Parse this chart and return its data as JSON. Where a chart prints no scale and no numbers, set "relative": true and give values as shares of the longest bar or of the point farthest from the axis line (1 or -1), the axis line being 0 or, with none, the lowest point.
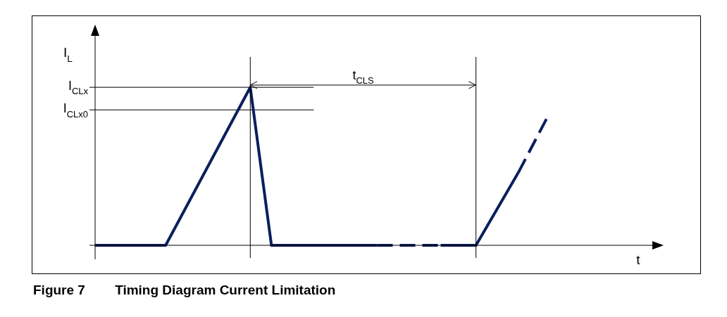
{
  "chart_data": {
    "type": "line",
    "relative": true,
    "title": "Figure 7        Timing Diagram Current Limitation",
    "xlabel": "t",
    "ylabel": "I$_{L}$",
    "tick_labels": false,
    "grid": false,
    "legend": false,
    "marker": "none",
    "categories": [
      null,
      null,
      null,
      null,
      null,
      null,
      null,
      null,
      null,
      null,
      null,
      null,
      null,
      null,
      null,
      null,
      null,
      null,
      null,
      null,
      null,
      null,
      null,
      null,
      null,
      null,
      null,
      null,
      null,
      null,
      null,
      null,
      null,
      null,
      null,
      null,
      null,
      null,
      null,
      null,
      null,
      null,
      null,
      null,
      null,
      null,
      null,
      null,
      null,
      null,
      null,
      null,
      null,
      null,
      null,
      null,
      null,
      null,
      null,
      null,
      null,
      null,
      null,
      null,
      null,
      null,
      null,
      null,
      null,
      null,
      null,
      null,
      null,
      null,
      null,
      null,
      null,
      null,
      null,
      null,
      null
    ],
    "series": [
      {
        "color": "#0b1f5c",
        "line_style": "solid",
        "values": [
          0,
          null,
          null,
          null,
          null,
          null,
          null,
          null,
          null,
          null,
          0,
          null,
          null,
          null,
          null,
          null,
          null,
          null,
          null,
          null,
          null,
          null,
          1,
          null,
          null,
          0,
          null,
          null,
          null,
          null,
          null,
          null,
          null,
          null,
          null,
          null,
          null,
          null,
          null,
          null,
          0,
          null,
          null,
          null,
          null,
          null,
          null,
          null,
          null,
          null,
          null,
          null,
          null,
          null,
          null,
          null,
          null,
          null,
          null,
          null,
          null,
          null,
          null,
          null,
          null,
          null,
          null,
          null,
          null,
          null,
          null,
          null,
          null,
          null,
          null,
          null,
          null,
          null,
          null,
          null,
          null
        ]
      },
      {
        "color": "#0b1f5c",
        "line_style": "dashed",
        "values": [
          null,
          null,
          null,
          null,
          null,
          null,
          null,
          null,
          null,
          null,
          null,
          null,
          null,
          null,
          null,
          null,
          null,
          null,
          null,
          null,
          null,
          null,
          null,
          null,
          null,
          null,
          null,
          null,
          null,
          null,
          null,
          null,
          null,
          null,
          null,
          null,
          null,
          null,
          null,
          null,
          0,
          null,
          null,
          null,
          null,
          null,
          null,
          null,
          null,
          0,
          null,
          null,
          null,
          null,
          null,
          null,
          null,
          null,
          null,
          null,
          null,
          null,
          null,
          null,
          null,
          null,
          null,
          null,
          null,
          null,
          null,
          null,
          null,
          null,
          null,
          null,
          null,
          null,
          null,
          null,
          null
        ]
      },
      {
        "color": "#0b1f5c",
        "line_style": "solid",
        "values": [
          null,
          null,
          null,
          null,
          null,
          null,
          null,
          null,
          null,
          null,
          null,
          null,
          null,
          null,
          null,
          null,
          null,
          null,
          null,
          null,
          null,
          null,
          null,
          null,
          null,
          null,
          null,
          null,
          null,
          null,
          null,
          null,
          null,
          null,
          null,
          null,
          null,
          null,
          null,
          null,
          null,
          null,
          null,
          null,
          null,
          null,
          null,
          null,
          null,
          0,
          null,
          null,
          null,
          null,
          0,
          null,
          null,
          null,
          null,
          null,
          0.46,
          null,
          null,
          null,
          null,
          null,
          null,
          null,
          null,
          null,
          null,
          null,
          null,
          null,
          null,
          null,
          null,
          null,
          null,
          null,
          null
        ]
      },
      {
        "color": "#0b1f5c",
        "line_style": "dashed",
        "values": [
          null,
          null,
          null,
          null,
          null,
          null,
          null,
          null,
          null,
          null,
          null,
          null,
          null,
          null,
          null,
          null,
          null,
          null,
          null,
          null,
          null,
          null,
          null,
          null,
          null,
          null,
          null,
          null,
          null,
          null,
          null,
          null,
          null,
          null,
          null,
          null,
          null,
          null,
          null,
          null,
          null,
          null,
          null,
          null,
          null,
          null,
          null,
          null,
          null,
          null,
          null,
          null,
          null,
          null,
          null,
          null,
          null,
          null,
          null,
          null,
          0.46,
          null,
          null,
          null,
          0.8,
          null,
          null,
          null,
          null,
          null,
          null,
          null,
          null,
          null,
          null,
          null,
          null,
          null,
          null,
          null,
          null
        ]
      },
      {
        "color": "#000000",
        "line_style": "solid",
        "values": [
          1,
          null,
          null,
          null,
          null,
          null,
          null,
          null,
          null,
          null,
          null,
          null,
          null,
          null,
          null,
          null,
          null,
          null,
          null,
          null,
          null,
          null,
          null,
          null,
          null,
          null,
          null,
          null,
          null,
          null,
          null,
          1,
          null,
          null,
          null,
          null,
          null,
          null,
          null,
          null,
          null,
          null,
          null,
          null,
          null,
          null,
          null,
          null,
          null,
          null,
          null,
          null,
          null,
          null,
          null,
          null,
          null,
          null,
          null,
          null,
          null,
          null,
          null,
          null,
          null,
          null,
          null,
          null,
          null,
          null,
          null,
          null,
          null,
          null,
          null,
          null,
          null,
          null,
          null,
          null,
          null
        ]
      },
      {
        "color": "#000000",
        "line_style": "solid",
        "values": [
          0.857,
          null,
          null,
          null,
          null,
          null,
          null,
          null,
          null,
          null,
          null,
          null,
          null,
          null,
          null,
          null,
          null,
          null,
          null,
          null,
          null,
          null,
          null,
          null,
          null,
          null,
          null,
          null,
          null,
          null,
          null,
          0.857,
          null,
          null,
          null,
          null,
          null,
          null,
          null,
          null,
          null,
          null,
          null,
          null,
          null,
          null,
          null,
          null,
          null,
          null,
          null,
          null,
          null,
          null,
          null,
          null,
          null,
          null,
          null,
          null,
          null,
          null,
          null,
          null,
          null,
          null,
          null,
          null,
          null,
          null,
          null,
          null,
          null,
          null,
          null,
          null,
          null,
          null,
          null,
          null,
          null
        ]
      }
    ],
    "annotations": [
      "I$_{CLx}$",
      "I$_{CLx0}$",
      "t$_{CLS}$"
    ]
  }
}
